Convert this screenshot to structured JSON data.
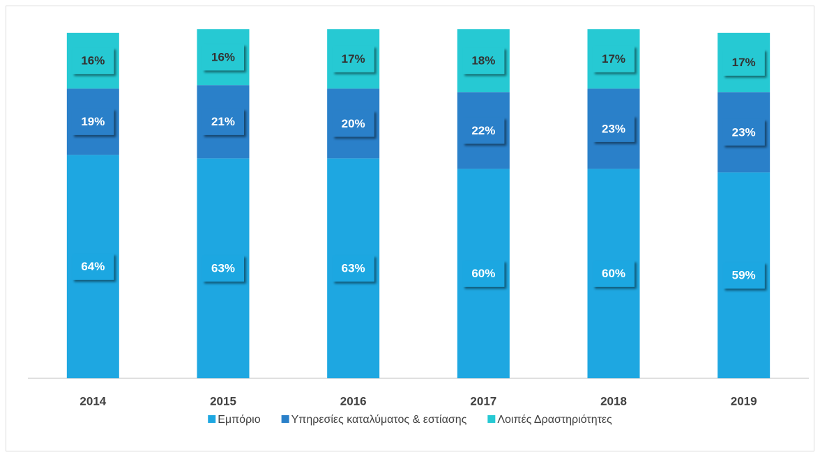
{
  "chart_data": {
    "type": "stacked_bar",
    "categories": [
      "2014",
      "2015",
      "2016",
      "2017",
      "2018",
      "2019"
    ],
    "series": [
      {
        "name": "Εμπόριο",
        "color": "#1ea7e1",
        "values": [
          64,
          63,
          63,
          60,
          60,
          59
        ],
        "value_labels": [
          "64%",
          "63%",
          "63%",
          "60%",
          "60%",
          "59%"
        ]
      },
      {
        "name": "Υπηρεσίες καταλύματος & εστίασης",
        "color": "#2a80c9",
        "values": [
          19,
          21,
          20,
          22,
          23,
          23
        ],
        "value_labels": [
          "19%",
          "21%",
          "20%",
          "22%",
          "23%",
          "23%"
        ]
      },
      {
        "name": "Λοιπές Δραστηριότητες",
        "color": "#26c9d3",
        "values": [
          16,
          16,
          17,
          18,
          17,
          17
        ],
        "value_labels": [
          "16%",
          "16%",
          "17%",
          "18%",
          "17%",
          "17%"
        ]
      }
    ],
    "ylim": [
      0,
      100
    ],
    "legend": "bottom"
  }
}
